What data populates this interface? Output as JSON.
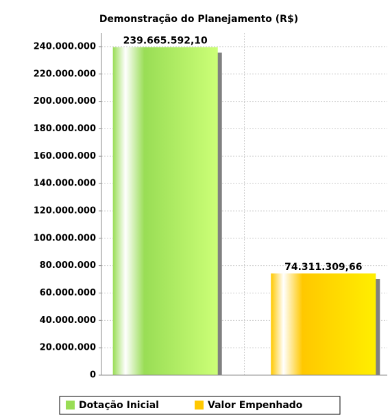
{
  "chart_data": {
    "type": "bar",
    "title": "Demonstração do Planejamento (R$)",
    "categories": [
      null
    ],
    "series": [
      {
        "name": "Dotação Inicial",
        "color": "#99dd55",
        "values": [
          239665592.1
        ],
        "value_labels": [
          "239.665.592,10"
        ]
      },
      {
        "name": "Valor Empenhado",
        "color": "#ffc800",
        "values": [
          74311309.66
        ],
        "value_labels": [
          "74.311.309,66"
        ]
      }
    ],
    "ylim": [
      0,
      250000000
    ],
    "yticks": [
      0,
      {
        "value": 20000000,
        "label": "20.000.000"
      },
      {
        "value": 40000000,
        "label": "40.000.000"
      },
      {
        "value": 60000000,
        "label": "60.000.000"
      },
      {
        "value": 80000000,
        "label": "80.000.000"
      },
      {
        "value": 100000000,
        "label": "100.000.000"
      },
      {
        "value": 120000000,
        "label": "120.000.000"
      },
      {
        "value": 140000000,
        "label": "140.000.000"
      },
      {
        "value": 160000000,
        "label": "160.000.000"
      },
      {
        "value": 180000000,
        "label": "180.000.000"
      },
      {
        "value": 200000000,
        "label": "200.000.000"
      },
      {
        "value": 220000000,
        "label": "220.000.000"
      },
      {
        "value": 240000000,
        "label": "240.000.000"
      }
    ],
    "grid": true,
    "legend": "bottom"
  }
}
